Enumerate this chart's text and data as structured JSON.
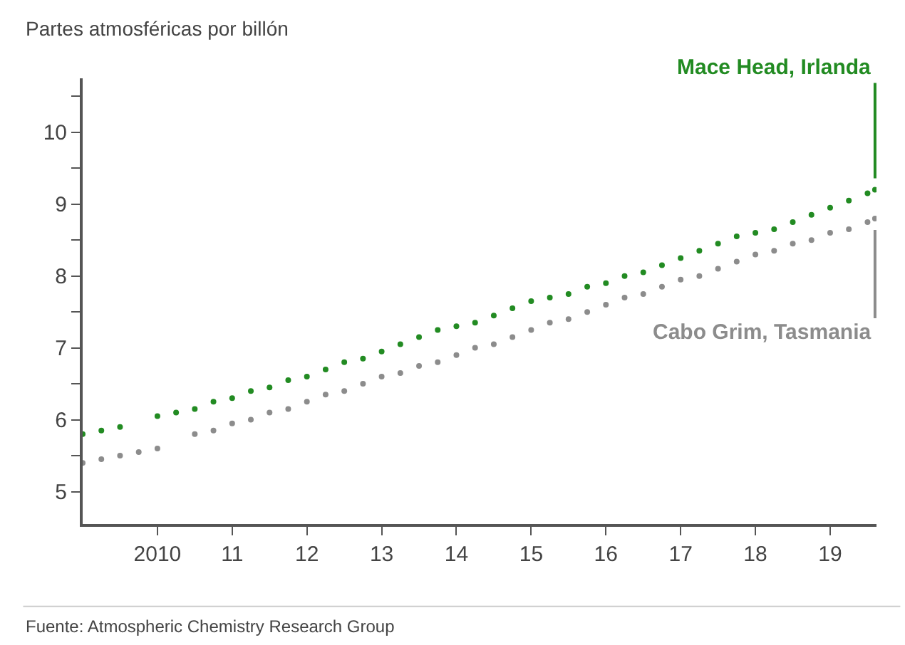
{
  "chart_data": {
    "type": "scatter",
    "ylabel": "Partes atmosféricas por billón",
    "annotations": [
      "Fuente: Atmospheric Chemistry Research Group"
    ],
    "x": [
      2009.0,
      2009.25,
      2009.5,
      2009.75,
      2010.0,
      2010.25,
      2010.5,
      2010.75,
      2011.0,
      2011.25,
      2011.5,
      2011.75,
      2012.0,
      2012.25,
      2012.5,
      2012.75,
      2013.0,
      2013.25,
      2013.5,
      2013.75,
      2014.0,
      2014.25,
      2014.5,
      2014.75,
      2015.0,
      2015.25,
      2015.5,
      2015.75,
      2016.0,
      2016.25,
      2016.5,
      2016.75,
      2017.0,
      2017.25,
      2017.5,
      2017.75,
      2018.0,
      2018.25,
      2018.5,
      2018.75,
      2019.0,
      2019.25,
      2019.5,
      2019.6
    ],
    "series": [
      {
        "name": "Mace Head, Irlanda",
        "color": "#228b22",
        "values": [
          5.8,
          5.85,
          5.9,
          null,
          6.05,
          6.1,
          6.15,
          6.25,
          6.3,
          6.4,
          6.45,
          6.55,
          6.6,
          6.7,
          6.8,
          6.85,
          6.95,
          7.05,
          7.15,
          7.25,
          7.3,
          7.35,
          7.45,
          7.55,
          7.65,
          7.7,
          7.75,
          7.85,
          7.9,
          8.0,
          8.05,
          8.15,
          8.25,
          8.35,
          8.45,
          8.55,
          8.6,
          8.65,
          8.75,
          8.85,
          8.95,
          9.05,
          9.15,
          9.2
        ]
      },
      {
        "name": "Cabo Grim, Tasmania",
        "color": "#8c8c8c",
        "values": [
          5.4,
          5.45,
          5.5,
          5.55,
          5.6,
          null,
          5.8,
          5.85,
          5.95,
          6.0,
          6.1,
          6.15,
          6.25,
          6.35,
          6.4,
          6.5,
          6.6,
          6.65,
          6.75,
          6.8,
          6.9,
          7.0,
          7.05,
          7.15,
          7.25,
          7.35,
          7.4,
          7.5,
          7.6,
          7.7,
          7.75,
          7.85,
          7.95,
          8.0,
          8.1,
          8.2,
          8.3,
          8.35,
          8.45,
          8.5,
          8.6,
          8.65,
          8.75,
          8.8
        ]
      }
    ],
    "xlim": [
      2009.0,
      2019.62
    ],
    "xticks": [
      2010,
      {
        "value": 2011,
        "label": "11"
      },
      {
        "value": 2012,
        "label": "12"
      },
      {
        "value": 2013,
        "label": "13"
      },
      {
        "value": 2014,
        "label": "14"
      },
      {
        "value": 2015,
        "label": "15"
      },
      {
        "value": 2016,
        "label": "16"
      },
      {
        "value": 2017,
        "label": "17"
      },
      {
        "value": 2018,
        "label": "18"
      },
      {
        "value": 2019,
        "label": "19"
      }
    ],
    "ylim": [
      4.55,
      10.75
    ],
    "yticks": [
      5,
      {
        "value": 5.5,
        "label": null
      },
      6,
      {
        "value": 6.5,
        "label": null
      },
      7,
      {
        "value": 7.5,
        "label": null
      },
      8,
      {
        "value": 8.5,
        "label": null
      },
      9,
      {
        "value": 9.5,
        "label": null
      },
      10,
      {
        "value": 10.5,
        "label": null
      }
    ],
    "grid": false,
    "legend": false,
    "marker": "circle"
  }
}
